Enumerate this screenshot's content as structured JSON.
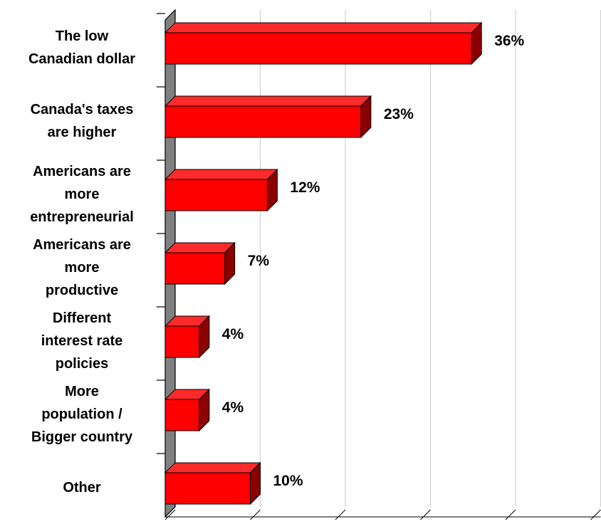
{
  "chart_data": {
    "type": "bar",
    "orientation": "horizontal",
    "style": "3d",
    "categories": [
      [
        "The low",
        "Canadian dollar"
      ],
      [
        "Canada's taxes",
        "are higher"
      ],
      [
        "Americans are",
        "more",
        "entrepreneurial"
      ],
      [
        "Americans are",
        "more",
        "productive"
      ],
      [
        "Different",
        "interest rate",
        "policies"
      ],
      [
        "More",
        "population /",
        "Bigger country"
      ],
      [
        "Other"
      ]
    ],
    "values": [
      36,
      23,
      12,
      7,
      4,
      4,
      10
    ],
    "value_labels": [
      "36%",
      "23%",
      "12%",
      "7%",
      "4%",
      "4%",
      "10%"
    ],
    "xlim": [
      0,
      50
    ],
    "grid": true,
    "colors": {
      "bar_front": "#ff0000",
      "bar_top": "#ff2a2a",
      "bar_side": "#8b0000",
      "wall": "#808080",
      "gridline": "#d0d0d0"
    }
  }
}
